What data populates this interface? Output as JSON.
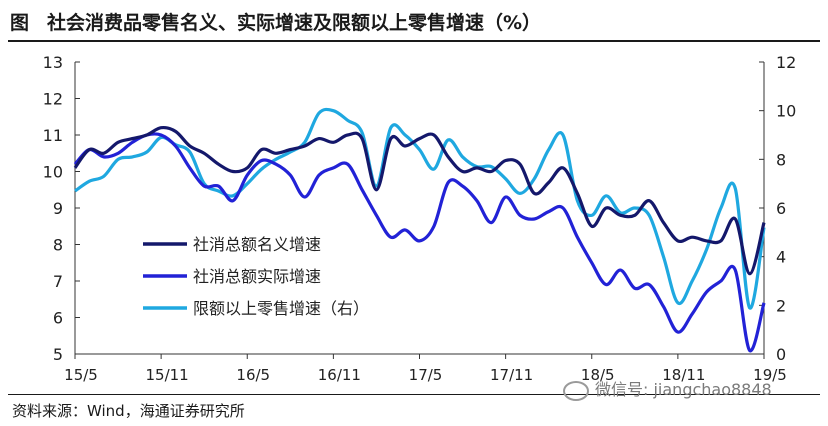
{
  "header": {
    "figure_label": "图",
    "title": "社会消费品零售名义、实际增速及限额以上零售增速（%）"
  },
  "source": "资料来源：Wind，海通证券研究所",
  "watermark": "微信号: jiangchao8848",
  "chart_data": {
    "type": "line",
    "x_ticks": [
      "15/5",
      "15/11",
      "16/5",
      "16/11",
      "17/5",
      "17/11",
      "18/5",
      "18/11",
      "19/5"
    ],
    "x_range": [
      "2015-05",
      "2019-05"
    ],
    "y_left": {
      "min": 5,
      "max": 13,
      "ticks": [
        5,
        6,
        7,
        8,
        9,
        10,
        11,
        12,
        13
      ]
    },
    "y_right": {
      "min": 0,
      "max": 12,
      "ticks": [
        0,
        2,
        4,
        6,
        8,
        10,
        12
      ]
    },
    "legend_position": "lower-left",
    "series": [
      {
        "name": "社消总额名义增速",
        "axis": "left",
        "color": "#14186b",
        "values": [
          10.1,
          10.6,
          10.5,
          10.8,
          10.9,
          11.0,
          11.2,
          11.1,
          10.7,
          10.5,
          10.2,
          10.0,
          10.1,
          10.6,
          10.5,
          10.6,
          10.7,
          10.9,
          10.8,
          11.0,
          10.9,
          9.5,
          10.9,
          10.7,
          10.9,
          11.0,
          10.4,
          10.0,
          10.1,
          10.0,
          10.3,
          10.2,
          9.4,
          9.7,
          10.1,
          9.4,
          8.5,
          9.0,
          8.8,
          8.8,
          9.2,
          8.6,
          8.1,
          8.2,
          8.1,
          8.1,
          8.7,
          7.2,
          8.6
        ]
      },
      {
        "name": "社消总额实际增速",
        "axis": "left",
        "color": "#2222d6",
        "values": [
          10.2,
          10.6,
          10.4,
          10.5,
          10.8,
          11.0,
          11.0,
          10.7,
          10.1,
          9.6,
          9.6,
          9.2,
          9.9,
          10.3,
          10.2,
          9.9,
          9.3,
          9.9,
          10.1,
          10.2,
          9.5,
          8.8,
          8.2,
          8.4,
          8.1,
          8.5,
          9.7,
          9.6,
          9.2,
          8.6,
          9.3,
          8.8,
          8.7,
          8.9,
          9.0,
          8.2,
          7.5,
          6.9,
          7.3,
          6.8,
          6.9,
          6.3,
          5.6,
          6.1,
          6.7,
          7.0,
          7.3,
          5.1,
          6.4
        ]
      },
      {
        "name": "限额以上零售增速（右）",
        "axis": "right",
        "color": "#1fa8e0",
        "values": [
          6.7,
          7.1,
          7.3,
          8.0,
          8.1,
          8.3,
          8.9,
          8.6,
          8.3,
          7.0,
          6.7,
          6.5,
          7.0,
          7.6,
          8.0,
          8.3,
          8.7,
          9.9,
          10.0,
          9.6,
          9.1,
          6.9,
          9.3,
          9.0,
          8.4,
          7.6,
          8.8,
          8.1,
          7.7,
          7.7,
          7.2,
          6.6,
          7.2,
          8.4,
          9.0,
          6.3,
          5.7,
          6.5,
          5.8,
          6.0,
          5.7,
          4.0,
          2.1,
          3.0,
          4.3,
          6.0,
          6.8,
          1.9,
          5.2
        ]
      }
    ]
  }
}
